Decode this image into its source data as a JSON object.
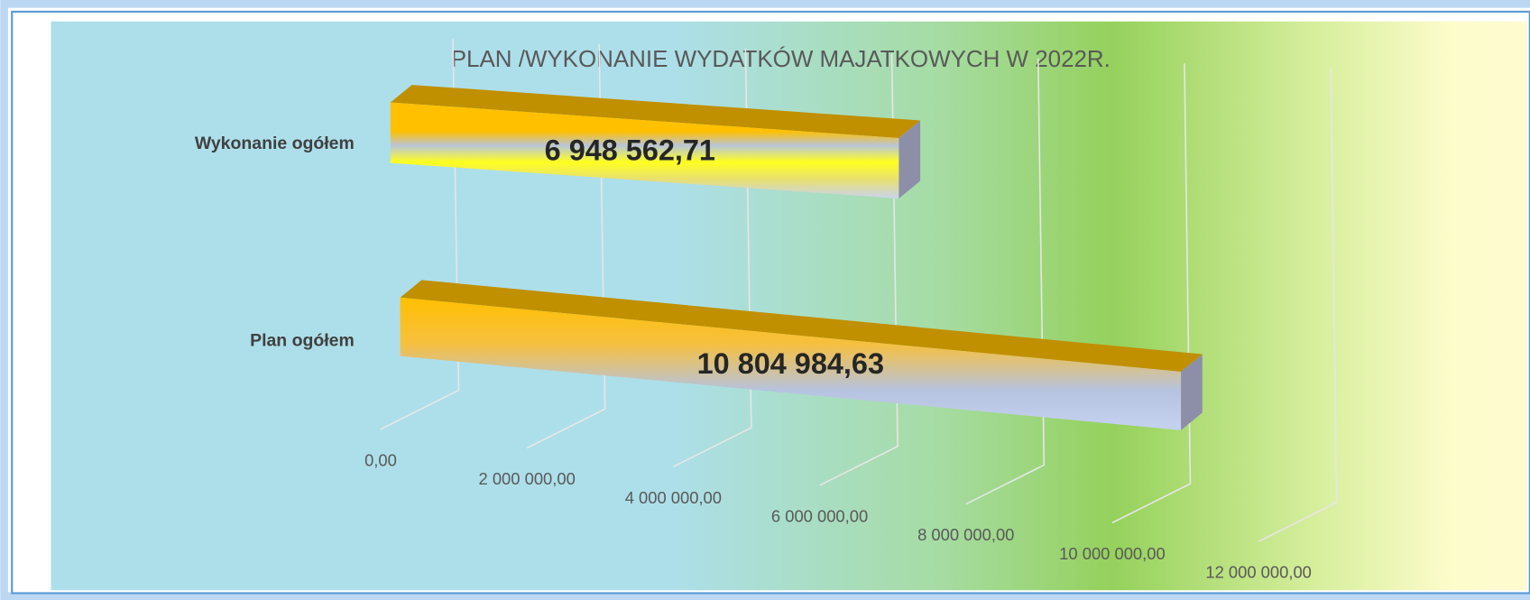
{
  "chart_data": {
    "type": "bar3d",
    "orientation": "horizontal",
    "title": "PLAN  /WYKONANIE WYDATKÓW MAJATKOWYCH W 2022R.",
    "categories": [
      "Wykonanie ogółem",
      "Plan ogółem"
    ],
    "values": [
      6948562.71,
      10804984.63
    ],
    "value_labels": [
      "6 948 562,71",
      "10 804 984,63"
    ],
    "xlim": [
      0,
      12000000
    ],
    "xticks": [
      {
        "value": 0,
        "label": "0,00"
      },
      {
        "value": 2000000,
        "label": "2 000 000,00"
      },
      {
        "value": 4000000,
        "label": "4 000 000,00"
      },
      {
        "value": 6000000,
        "label": "6 000 000,00"
      },
      {
        "value": 8000000,
        "label": "8 000 000,00"
      },
      {
        "value": 10000000,
        "label": "10 000 000,00"
      },
      {
        "value": 12000000,
        "label": "12 000 000,00"
      }
    ],
    "grid": true
  }
}
